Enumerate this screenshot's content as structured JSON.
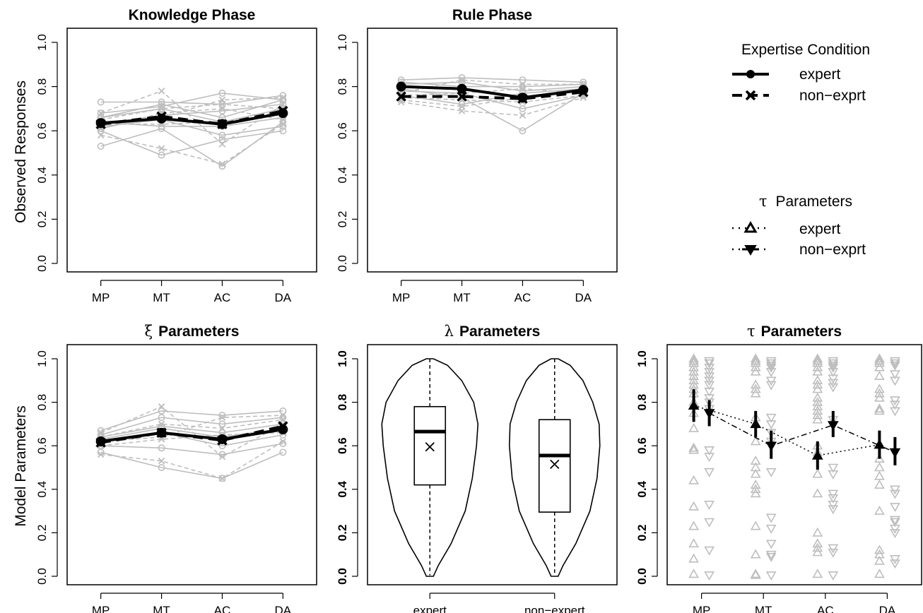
{
  "ylabels": {
    "top": "Observed Responses",
    "bottom": "Model Parameters"
  },
  "legend_expertise": {
    "title": "Expertise Condition",
    "items": [
      "expert",
      "non−exprt"
    ]
  },
  "legend_tau": {
    "title_symbol": "τ",
    "title_text": "Parameters",
    "items": [
      "expert",
      "non−exprt"
    ]
  },
  "colors": {
    "main": "#000000",
    "individual": "#bebebe"
  },
  "chart_data": [
    {
      "type": "line",
      "id": "knowledge",
      "title": "Knowledge Phase",
      "title_symbol": "",
      "categories": [
        "MP",
        "MT",
        "AC",
        "DA"
      ],
      "ylim": [
        0,
        1
      ],
      "yticks": [
        "0.0",
        "0.2",
        "0.4",
        "0.6",
        "0.8",
        "1.0"
      ],
      "series": [
        {
          "name": "expert",
          "values": [
            0.635,
            0.655,
            0.63,
            0.68
          ]
        },
        {
          "name": "non−exprt",
          "values": [
            0.63,
            0.665,
            0.63,
            0.69
          ]
        }
      ],
      "individual_expert": [
        [
          0.73,
          0.73,
          0.72,
          0.76
        ],
        [
          0.68,
          0.71,
          0.77,
          0.74
        ],
        [
          0.66,
          0.7,
          0.64,
          0.7
        ],
        [
          0.64,
          0.62,
          0.62,
          0.66
        ],
        [
          0.62,
          0.65,
          0.58,
          0.62
        ],
        [
          0.6,
          0.49,
          0.56,
          0.6
        ],
        [
          0.53,
          0.61,
          0.44,
          0.64
        ],
        [
          0.61,
          0.67,
          0.69,
          0.72
        ],
        [
          0.66,
          0.72,
          0.66,
          0.74
        ]
      ],
      "individual_nonexpert": [
        [
          0.68,
          0.78,
          0.54,
          0.72
        ],
        [
          0.58,
          0.52,
          0.45,
          0.63
        ],
        [
          0.62,
          0.66,
          0.74,
          0.75
        ],
        [
          0.65,
          0.7,
          0.72,
          0.7
        ],
        [
          0.63,
          0.63,
          0.64,
          0.68
        ],
        [
          0.61,
          0.68,
          0.7,
          0.65
        ]
      ]
    },
    {
      "type": "line",
      "id": "rule",
      "title": "Rule Phase",
      "title_symbol": "",
      "categories": [
        "MP",
        "MT",
        "AC",
        "DA"
      ],
      "ylim": [
        0,
        1
      ],
      "yticks": [
        "0.0",
        "0.2",
        "0.4",
        "0.6",
        "0.8",
        "1.0"
      ],
      "series": [
        {
          "name": "expert",
          "values": [
            0.8,
            0.79,
            0.75,
            0.785
          ]
        },
        {
          "name": "non−exprt",
          "values": [
            0.755,
            0.755,
            0.745,
            0.775
          ]
        }
      ],
      "individual_expert": [
        [
          0.83,
          0.84,
          0.83,
          0.82
        ],
        [
          0.81,
          0.82,
          0.78,
          0.8
        ],
        [
          0.79,
          0.75,
          0.6,
          0.77
        ],
        [
          0.78,
          0.77,
          0.7,
          0.76
        ],
        [
          0.82,
          0.8,
          0.8,
          0.81
        ],
        [
          0.76,
          0.72,
          0.77,
          0.79
        ]
      ],
      "individual_nonexpert": [
        [
          0.73,
          0.69,
          0.67,
          0.75
        ],
        [
          0.77,
          0.83,
          0.81,
          0.81
        ],
        [
          0.75,
          0.74,
          0.73,
          0.76
        ],
        [
          0.74,
          0.71,
          0.75,
          0.78
        ],
        [
          0.76,
          0.77,
          0.79,
          0.77
        ]
      ]
    },
    {
      "type": "line",
      "id": "xi",
      "title": "Parameters",
      "title_symbol": "ξ",
      "categories": [
        "MP",
        "MT",
        "AC",
        "DA"
      ],
      "ylim": [
        0,
        1
      ],
      "yticks": [
        "0.0",
        "0.2",
        "0.4",
        "0.6",
        "0.8",
        "1.0"
      ],
      "series": [
        {
          "name": "expert",
          "values": [
            0.62,
            0.66,
            0.63,
            0.675
          ]
        },
        {
          "name": "non−exprt",
          "values": [
            0.615,
            0.66,
            0.625,
            0.69
          ]
        }
      ],
      "individual_expert": [
        [
          0.67,
          0.76,
          0.74,
          0.76
        ],
        [
          0.65,
          0.73,
          0.7,
          0.73
        ],
        [
          0.64,
          0.69,
          0.66,
          0.7
        ],
        [
          0.62,
          0.66,
          0.6,
          0.65
        ],
        [
          0.6,
          0.59,
          0.56,
          0.61
        ],
        [
          0.57,
          0.5,
          0.45,
          0.57
        ],
        [
          0.63,
          0.68,
          0.64,
          0.68
        ]
      ],
      "individual_nonexpert": [
        [
          0.66,
          0.78,
          0.55,
          0.7
        ],
        [
          0.56,
          0.53,
          0.45,
          0.62
        ],
        [
          0.62,
          0.64,
          0.73,
          0.74
        ],
        [
          0.6,
          0.63,
          0.65,
          0.66
        ],
        [
          0.64,
          0.7,
          0.68,
          0.72
        ]
      ]
    },
    {
      "type": "violin",
      "id": "lambda",
      "title": "Parameters",
      "title_symbol": "λ",
      "categories": [
        "expert",
        "non−expert"
      ],
      "ylim": [
        0,
        1
      ],
      "yticks": [
        "0.0",
        "0.2",
        "0.4",
        "0.6",
        "0.8",
        "1.0"
      ],
      "boxes": [
        {
          "name": "expert",
          "min": 0.005,
          "q1": 0.42,
          "median": 0.665,
          "q3": 0.78,
          "max": 1.0,
          "mean": 0.595
        },
        {
          "name": "non−expert",
          "min": 0.005,
          "q1": 0.295,
          "median": 0.555,
          "q3": 0.72,
          "max": 1.0,
          "mean": 0.515
        }
      ]
    },
    {
      "type": "scatter",
      "id": "tau",
      "title": "Parameters",
      "title_symbol": "τ",
      "categories": [
        "MP",
        "MT",
        "AC",
        "DA"
      ],
      "ylim": [
        0,
        1
      ],
      "yticks": [
        "0.0",
        "0.2",
        "0.4",
        "0.6",
        "0.8",
        "1.0"
      ],
      "series": [
        {
          "name": "expert",
          "values": [
            0.785,
            0.7,
            0.555,
            0.605
          ],
          "ci_low": [
            0.71,
            0.64,
            0.49,
            0.54
          ],
          "ci_high": [
            0.86,
            0.76,
            0.62,
            0.67
          ]
        },
        {
          "name": "non−exprt",
          "values": [
            0.75,
            0.6,
            0.695,
            0.57
          ],
          "ci_low": [
            0.69,
            0.54,
            0.64,
            0.51
          ],
          "ci_high": [
            0.81,
            0.67,
            0.76,
            0.64
          ]
        }
      ],
      "individual_expert": [
        [
          1.0,
          0.99,
          0.98,
          0.96,
          0.94,
          0.92,
          0.9,
          0.88,
          0.86,
          0.84,
          0.8,
          0.75,
          0.68,
          0.59,
          0.58,
          0.44,
          0.32,
          0.23,
          0.15,
          0.08,
          0.01
        ],
        [
          1.0,
          0.99,
          0.98,
          0.96,
          0.94,
          0.88,
          0.86,
          0.84,
          0.73,
          0.62,
          0.53,
          0.5,
          0.47,
          0.42,
          0.4,
          0.38,
          0.23,
          0.1,
          0.01,
          0.005
        ],
        [
          1.0,
          0.99,
          0.98,
          0.96,
          0.94,
          0.9,
          0.88,
          0.86,
          0.82,
          0.8,
          0.78,
          0.76,
          0.74,
          0.72,
          0.6,
          0.57,
          0.47,
          0.38,
          0.2,
          0.15,
          0.13,
          0.11,
          0.01
        ],
        [
          1.0,
          0.99,
          0.98,
          0.96,
          0.92,
          0.86,
          0.84,
          0.82,
          0.77,
          0.76,
          0.54,
          0.5,
          0.46,
          0.42,
          0.3,
          0.12,
          0.1,
          0.07,
          0.01
        ]
      ],
      "individual_nonexpert": [
        [
          0.99,
          0.98,
          0.96,
          0.94,
          0.92,
          0.9,
          0.88,
          0.85,
          0.82,
          0.8,
          0.77,
          0.58,
          0.55,
          0.48,
          0.33,
          0.25,
          0.12,
          0.005
        ],
        [
          0.99,
          0.98,
          0.97,
          0.96,
          0.94,
          0.9,
          0.88,
          0.73,
          0.7,
          0.66,
          0.62,
          0.48,
          0.27,
          0.22,
          0.15,
          0.1,
          0.09,
          0.005
        ],
        [
          0.99,
          0.98,
          0.97,
          0.96,
          0.94,
          0.91,
          0.89,
          0.87,
          0.72,
          0.5,
          0.47,
          0.38,
          0.36,
          0.33,
          0.31,
          0.13,
          0.11,
          0.005
        ],
        [
          0.99,
          0.98,
          0.97,
          0.93,
          0.9,
          0.81,
          0.79,
          0.76,
          0.4,
          0.38,
          0.32,
          0.26,
          0.25,
          0.22,
          0.2,
          0.08,
          0.06
        ]
      ]
    }
  ]
}
